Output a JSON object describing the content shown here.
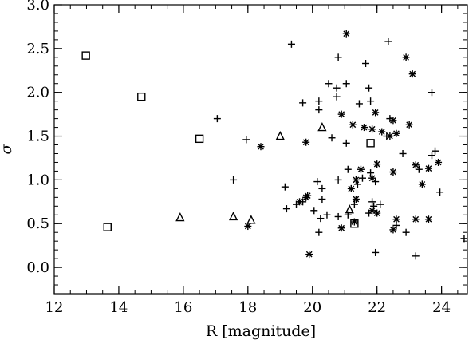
{
  "chart_data": {
    "type": "scatter",
    "title": "",
    "xlabel": "R [magnitude]",
    "ylabel": "σ",
    "xlim": [
      12,
      24.8
    ],
    "ylim": [
      -0.3,
      3.0
    ],
    "xticks": [
      12,
      14,
      16,
      18,
      20,
      22,
      24
    ],
    "yticks": [
      0.0,
      0.5,
      1.0,
      1.5,
      2.0,
      2.5,
      3.0
    ],
    "xtick_labels": [
      "12",
      "14",
      "16",
      "18",
      "20",
      "22",
      "24"
    ],
    "ytick_labels": [
      "0.0",
      "0.5",
      "1.0",
      "1.5",
      "2.0",
      "2.5",
      "3.0"
    ],
    "grid": false,
    "legend": "none",
    "series": [
      {
        "marker": "square",
        "points": [
          [
            12.98,
            2.42
          ],
          [
            14.7,
            1.95
          ],
          [
            16.5,
            1.47
          ],
          [
            21.8,
            1.42
          ],
          [
            13.65,
            0.46
          ],
          [
            21.3,
            0.5
          ]
        ]
      },
      {
        "marker": "triangle",
        "points": [
          [
            19.0,
            1.5
          ],
          [
            20.3,
            1.6
          ],
          [
            15.9,
            0.57
          ],
          [
            17.55,
            0.58
          ],
          [
            18.1,
            0.54
          ],
          [
            21.15,
            0.66
          ]
        ]
      },
      {
        "marker": "plus",
        "points": [
          [
            19.35,
            2.55
          ],
          [
            22.35,
            2.58
          ],
          [
            20.8,
            2.4
          ],
          [
            21.65,
            2.33
          ],
          [
            20.5,
            2.1
          ],
          [
            20.75,
            2.05
          ],
          [
            21.05,
            2.1
          ],
          [
            20.75,
            1.95
          ],
          [
            21.75,
            2.05
          ],
          [
            23.7,
            2.0
          ],
          [
            19.7,
            1.88
          ],
          [
            20.2,
            1.9
          ],
          [
            21.45,
            1.87
          ],
          [
            21.8,
            1.9
          ],
          [
            20.2,
            1.8
          ],
          [
            17.05,
            1.7
          ],
          [
            22.4,
            1.7
          ],
          [
            17.95,
            1.46
          ],
          [
            20.6,
            1.48
          ],
          [
            21.05,
            1.42
          ],
          [
            22.3,
            1.5
          ],
          [
            22.8,
            1.3
          ],
          [
            23.7,
            1.28
          ],
          [
            23.8,
            1.33
          ],
          [
            17.55,
            1.0
          ],
          [
            19.15,
            0.92
          ],
          [
            20.15,
            0.98
          ],
          [
            20.3,
            0.9
          ],
          [
            20.8,
            1.0
          ],
          [
            21.1,
            1.12
          ],
          [
            21.4,
            0.95
          ],
          [
            21.55,
            1.02
          ],
          [
            21.8,
            1.08
          ],
          [
            21.95,
            0.98
          ],
          [
            23.3,
            1.12
          ],
          [
            23.95,
            0.86
          ],
          [
            19.2,
            0.67
          ],
          [
            19.5,
            0.72
          ],
          [
            19.7,
            0.75
          ],
          [
            20.05,
            0.65
          ],
          [
            20.3,
            0.78
          ],
          [
            20.45,
            0.6
          ],
          [
            20.25,
            0.56
          ],
          [
            20.8,
            0.58
          ],
          [
            21.1,
            0.6
          ],
          [
            21.3,
            0.72
          ],
          [
            21.75,
            0.62
          ],
          [
            21.9,
            0.7
          ],
          [
            21.85,
            0.75
          ],
          [
            22.1,
            0.72
          ],
          [
            20.2,
            0.4
          ],
          [
            22.6,
            0.48
          ],
          [
            22.9,
            0.4
          ],
          [
            21.95,
            0.17
          ],
          [
            23.2,
            0.13
          ],
          [
            24.7,
            0.33
          ]
        ]
      },
      {
        "marker": "asterisk",
        "points": [
          [
            21.05,
            2.67
          ],
          [
            22.9,
            2.4
          ],
          [
            23.1,
            2.21
          ],
          [
            20.9,
            1.75
          ],
          [
            21.95,
            1.77
          ],
          [
            21.25,
            1.63
          ],
          [
            21.6,
            1.6
          ],
          [
            21.85,
            1.58
          ],
          [
            22.4,
            1.5
          ],
          [
            22.6,
            1.53
          ],
          [
            22.5,
            1.68
          ],
          [
            23.0,
            1.63
          ],
          [
            22.15,
            1.55
          ],
          [
            18.4,
            1.38
          ],
          [
            19.8,
            1.43
          ],
          [
            21.2,
            0.9
          ],
          [
            21.5,
            1.12
          ],
          [
            21.35,
            1.0
          ],
          [
            21.85,
            1.02
          ],
          [
            22.0,
            1.18
          ],
          [
            22.5,
            1.09
          ],
          [
            23.2,
            1.17
          ],
          [
            23.6,
            1.13
          ],
          [
            23.9,
            1.2
          ],
          [
            23.4,
            0.95
          ],
          [
            19.6,
            0.75
          ],
          [
            19.8,
            0.8
          ],
          [
            19.85,
            0.82
          ],
          [
            21.35,
            0.78
          ],
          [
            21.85,
            0.65
          ],
          [
            22.0,
            0.62
          ],
          [
            22.6,
            0.55
          ],
          [
            23.2,
            0.55
          ],
          [
            23.6,
            0.55
          ],
          [
            18.0,
            0.47
          ],
          [
            20.9,
            0.45
          ],
          [
            21.3,
            0.52
          ],
          [
            22.5,
            0.43
          ],
          [
            19.9,
            0.15
          ]
        ]
      }
    ]
  }
}
